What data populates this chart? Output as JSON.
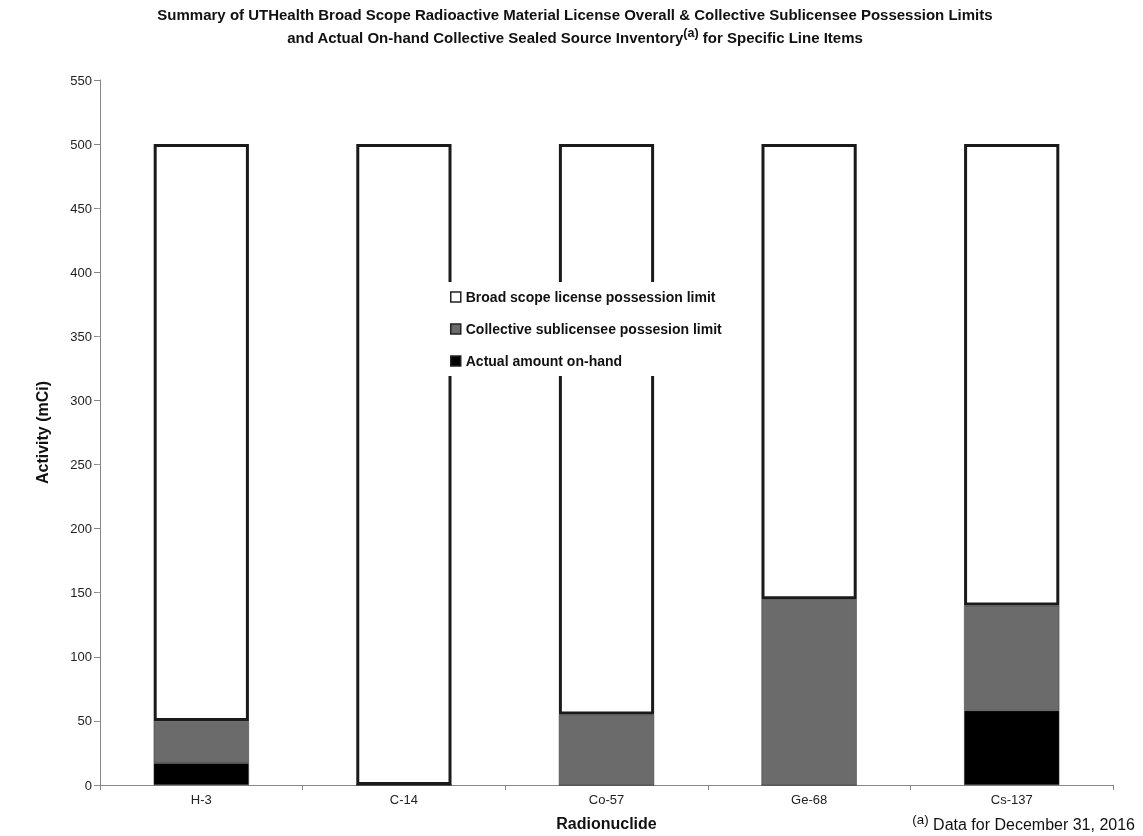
{
  "chart_data": {
    "type": "bar",
    "title": "Summary of UTHealth Broad Scope Radioactive Material License Overall & Collective Sublicensee  Possession Limits and Actual On-hand Collective Sealed Source Inventory$^{(a)}$ for Specific Line Items",
    "xlabel": "Radionuclide",
    "ylabel": "Activity (mCi)",
    "annotations": [
      "$^{(a)}$ Data for December 31, 2016"
    ],
    "categories": [
      "H-3",
      "C-14",
      "Co-57",
      "Ge-68",
      "Cs-137"
    ],
    "stacked": true,
    "series": [
      {
        "name": "Actual amount on-hand",
        "color": "#000000",
        "values": [
          17,
          0,
          0,
          0,
          58
        ]
      },
      {
        "name": "Collective sublicensee possesion limit",
        "color": "#6b6b6b",
        "values": [
          33,
          0,
          55,
          145,
          82
        ]
      },
      {
        "name": "Broad scope license possession limit",
        "color": "#ffffff",
        "values": [
          450,
          500,
          445,
          355,
          360
        ]
      }
    ],
    "ylim": [
      0,
      550
    ],
    "yticks": [
      0,
      50,
      100,
      150,
      200,
      250,
      300,
      350,
      400,
      450,
      500,
      550
    ],
    "grid": false,
    "legend": "center"
  }
}
